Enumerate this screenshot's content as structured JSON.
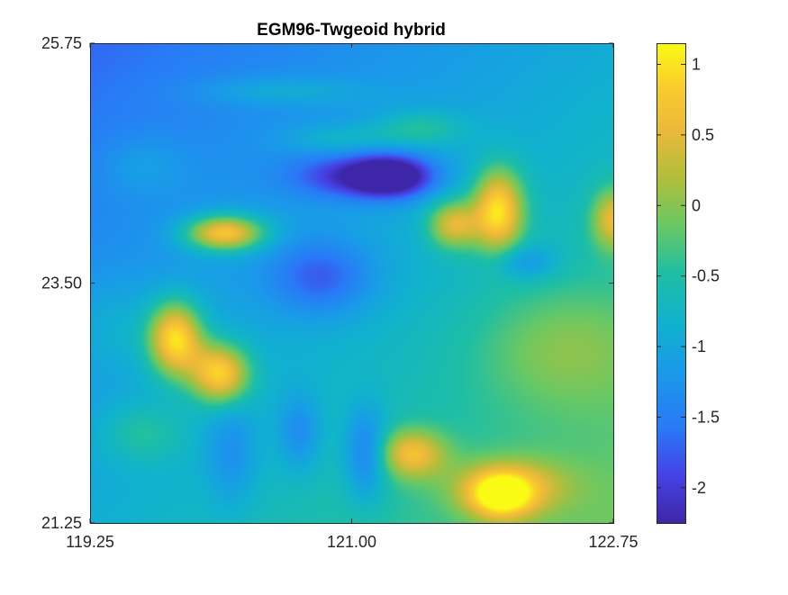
{
  "chart_data": {
    "type": "heatmap",
    "title": "EGM96-Twgeoid hybrid",
    "xlabel": "",
    "ylabel": "",
    "xlim": [
      119.25,
      122.75
    ],
    "ylim": [
      21.25,
      25.75
    ],
    "xticks": [
      {
        "value": 119.25,
        "label": "119.25"
      },
      {
        "value": 121.0,
        "label": "121.00"
      },
      {
        "value": 122.75,
        "label": "122.75"
      }
    ],
    "yticks": [
      {
        "value": 21.25,
        "label": "21.25"
      },
      {
        "value": 23.5,
        "label": "23.50"
      },
      {
        "value": 25.75,
        "label": "25.75"
      }
    ],
    "colorbar": {
      "colormap": "parula",
      "clim": [
        -2.25,
        1.15
      ],
      "ticks": [
        {
          "value": 1,
          "label": "1"
        },
        {
          "value": 0.5,
          "label": "0.5"
        },
        {
          "value": 0,
          "label": "0"
        },
        {
          "value": -0.5,
          "label": "-0.5"
        },
        {
          "value": -1,
          "label": "-1"
        },
        {
          "value": -1.5,
          "label": "-1.5"
        },
        {
          "value": -2,
          "label": "-2"
        }
      ]
    },
    "background_value": -0.9,
    "gradient": {
      "lon_coef": 0.22,
      "lat_coef": -0.18
    },
    "features": [
      {
        "lon": 120.15,
        "lat": 23.97,
        "amp": 1.9,
        "slon": 0.19,
        "slat": 0.12
      },
      {
        "lon": 119.82,
        "lat": 22.98,
        "amp": 2.0,
        "slon": 0.13,
        "slat": 0.25
      },
      {
        "lon": 120.12,
        "lat": 22.65,
        "amp": 1.8,
        "slon": 0.14,
        "slat": 0.2
      },
      {
        "lon": 121.98,
        "lat": 24.18,
        "amp": 1.8,
        "slon": 0.12,
        "slat": 0.28
      },
      {
        "lon": 121.68,
        "lat": 24.05,
        "amp": 1.3,
        "slon": 0.12,
        "slat": 0.16
      },
      {
        "lon": 122.75,
        "lat": 24.1,
        "amp": 1.2,
        "slon": 0.1,
        "slat": 0.2
      },
      {
        "lon": 121.4,
        "lat": 21.9,
        "amp": 1.2,
        "slon": 0.16,
        "slat": 0.16
      },
      {
        "lon": 122.05,
        "lat": 21.6,
        "amp": 0.9,
        "slon": 0.28,
        "slat": 0.18
      },
      {
        "lon": 122.0,
        "lat": 21.5,
        "amp": 1.4,
        "slon": 0.15,
        "slat": 0.15
      },
      {
        "lon": 121.45,
        "lat": 24.95,
        "amp": 0.6,
        "slon": 0.22,
        "slat": 0.12
      },
      {
        "lon": 120.5,
        "lat": 25.3,
        "amp": 0.4,
        "slon": 0.4,
        "slat": 0.1
      },
      {
        "lon": 120.9,
        "lat": 24.85,
        "amp": 0.4,
        "slon": 0.25,
        "slat": 0.1
      },
      {
        "lon": 122.4,
        "lat": 22.9,
        "amp": 0.5,
        "slon": 0.4,
        "slat": 0.4
      },
      {
        "lon": 119.6,
        "lat": 22.1,
        "amp": 0.5,
        "slon": 0.2,
        "slat": 0.2
      },
      {
        "lon": 119.4,
        "lat": 23.1,
        "amp": 0.3,
        "slon": 0.2,
        "slat": 0.3
      },
      {
        "lon": 121.27,
        "lat": 24.5,
        "amp": -1.6,
        "slon": 0.2,
        "slat": 0.14
      },
      {
        "lon": 120.95,
        "lat": 24.5,
        "amp": -0.8,
        "slon": 0.28,
        "slat": 0.15
      },
      {
        "lon": 121.1,
        "lat": 21.9,
        "amp": -0.9,
        "slon": 0.1,
        "slat": 0.3
      },
      {
        "lon": 120.8,
        "lat": 23.55,
        "amp": -0.8,
        "slon": 0.25,
        "slat": 0.25
      },
      {
        "lon": 120.65,
        "lat": 22.1,
        "amp": -0.6,
        "slon": 0.1,
        "slat": 0.25
      },
      {
        "lon": 120.2,
        "lat": 21.9,
        "amp": -0.5,
        "slon": 0.12,
        "slat": 0.35
      },
      {
        "lon": 122.15,
        "lat": 23.7,
        "amp": -0.6,
        "slon": 0.15,
        "slat": 0.12
      },
      {
        "lon": 119.6,
        "lat": 24.6,
        "amp": 0.3,
        "slon": 0.2,
        "slat": 0.2
      }
    ]
  }
}
